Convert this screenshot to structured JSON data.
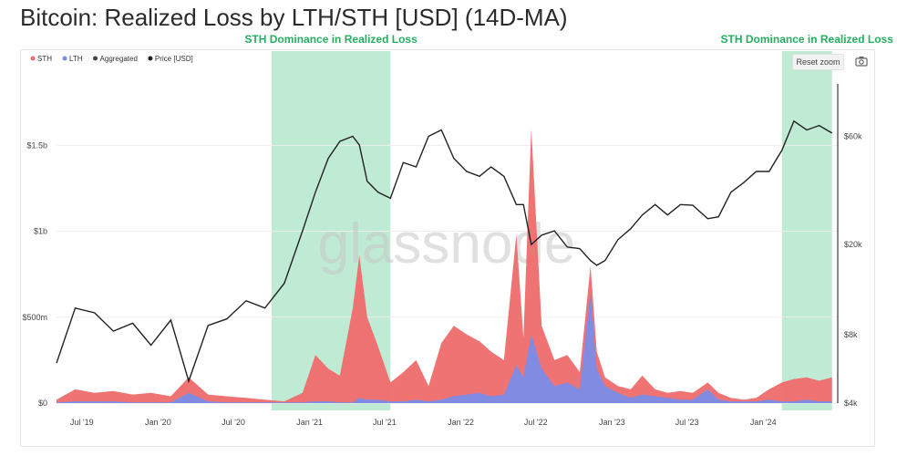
{
  "title": "Bitcoin: Realized Loss by LTH/STH [USD] (14D-MA)",
  "annotations": [
    {
      "label": "STH Dominance in Realized Loss",
      "start": "2020-10-01",
      "end": "2021-07-15"
    },
    {
      "label": "STH Dominance in Realized Loss",
      "start": "2024-02-15",
      "end": "2024-06-15"
    }
  ],
  "toolbar": {
    "reset_zoom_label": "Reset zoom",
    "camera_icon": "camera-icon"
  },
  "watermark": "glassnode",
  "colors": {
    "sth": "#ef6b6b",
    "lth": "#7b8ce8",
    "aggregated": "#444444",
    "price": "#222222",
    "highlight": "#bfead3",
    "annotation": "#27ae60"
  },
  "chart_data": {
    "type": "area",
    "title": "Bitcoin: Realized Loss by LTH/STH [USD] (14D-MA)",
    "legend": {
      "position": "top-left",
      "entries": [
        "STH",
        "LTH",
        "Aggregated",
        "Price [USD]"
      ]
    },
    "x_ticks": [
      "Jul '19",
      "Jan '20",
      "Jul '20",
      "Jan '21",
      "Jul '21",
      "Jan '22",
      "Jul '22",
      "Jan '23",
      "Jul '23",
      "Jan '24"
    ],
    "x_range": [
      "2019-05-01",
      "2024-06-20"
    ],
    "y_left": {
      "ticks": [
        "$0",
        "$500m",
        "$1b",
        "$1.5b"
      ],
      "range": [
        0,
        1900000000
      ]
    },
    "y_right": {
      "ticks": [
        "$4k",
        "$8k",
        "$20k",
        "$60k"
      ],
      "scale": "log",
      "range": [
        4000,
        110000
      ]
    },
    "grid": true,
    "x": [
      "2019-05-01",
      "2019-06-15",
      "2019-08-01",
      "2019-09-15",
      "2019-11-01",
      "2019-12-15",
      "2020-02-01",
      "2020-03-15",
      "2020-05-01",
      "2020-06-15",
      "2020-08-01",
      "2020-09-15",
      "2020-11-01",
      "2020-12-15",
      "2021-01-15",
      "2021-02-15",
      "2021-03-15",
      "2021-04-15",
      "2021-05-01",
      "2021-05-20",
      "2021-06-15",
      "2021-07-15",
      "2021-08-15",
      "2021-09-15",
      "2021-10-15",
      "2021-11-15",
      "2021-12-15",
      "2022-01-15",
      "2022-02-15",
      "2022-03-15",
      "2022-04-15",
      "2022-05-15",
      "2022-06-01",
      "2022-06-20",
      "2022-07-15",
      "2022-08-15",
      "2022-09-15",
      "2022-10-15",
      "2022-11-10",
      "2022-11-25",
      "2022-12-15",
      "2023-01-15",
      "2023-02-15",
      "2023-03-15",
      "2023-04-15",
      "2023-05-15",
      "2023-06-15",
      "2023-07-15",
      "2023-08-20",
      "2023-09-15",
      "2023-10-15",
      "2023-11-15",
      "2023-12-15",
      "2024-01-15",
      "2024-02-15",
      "2024-03-15",
      "2024-04-15",
      "2024-05-15",
      "2024-06-15"
    ],
    "series": [
      {
        "name": "STH",
        "values": [
          20000000,
          80000000,
          60000000,
          70000000,
          50000000,
          60000000,
          40000000,
          150000000,
          50000000,
          40000000,
          30000000,
          20000000,
          10000000,
          60000000,
          280000000,
          200000000,
          160000000,
          550000000,
          860000000,
          500000000,
          330000000,
          120000000,
          180000000,
          250000000,
          100000000,
          350000000,
          450000000,
          400000000,
          360000000,
          300000000,
          250000000,
          980000000,
          380000000,
          1600000000,
          450000000,
          250000000,
          280000000,
          180000000,
          800000000,
          300000000,
          150000000,
          100000000,
          80000000,
          160000000,
          80000000,
          60000000,
          70000000,
          60000000,
          120000000,
          60000000,
          30000000,
          20000000,
          30000000,
          80000000,
          120000000,
          140000000,
          150000000,
          130000000,
          150000000
        ]
      },
      {
        "name": "LTH",
        "values": [
          5000000,
          10000000,
          10000000,
          10000000,
          5000000,
          5000000,
          5000000,
          60000000,
          10000000,
          5000000,
          5000000,
          5000000,
          5000000,
          5000000,
          10000000,
          10000000,
          5000000,
          5000000,
          30000000,
          20000000,
          20000000,
          10000000,
          10000000,
          20000000,
          10000000,
          20000000,
          40000000,
          50000000,
          60000000,
          40000000,
          50000000,
          220000000,
          150000000,
          400000000,
          200000000,
          100000000,
          120000000,
          80000000,
          650000000,
          200000000,
          100000000,
          60000000,
          30000000,
          50000000,
          40000000,
          30000000,
          20000000,
          20000000,
          80000000,
          20000000,
          10000000,
          10000000,
          10000000,
          20000000,
          10000000,
          10000000,
          20000000,
          10000000,
          10000000
        ]
      },
      {
        "name": "Price [USD]",
        "values": [
          6000,
          10500,
          10000,
          8300,
          9000,
          7200,
          9300,
          5000,
          8800,
          9400,
          11300,
          10500,
          13500,
          23000,
          34000,
          48000,
          57000,
          60000,
          55000,
          38000,
          34000,
          32000,
          46000,
          44000,
          60000,
          64000,
          48000,
          42000,
          40000,
          44000,
          40000,
          30000,
          30000,
          20000,
          22000,
          23000,
          19500,
          19200,
          17000,
          16200,
          17000,
          21000,
          23500,
          27000,
          30000,
          27000,
          30000,
          29800,
          26000,
          26500,
          34000,
          37500,
          42000,
          42000,
          52000,
          70000,
          64000,
          67000,
          62000
        ]
      }
    ]
  }
}
